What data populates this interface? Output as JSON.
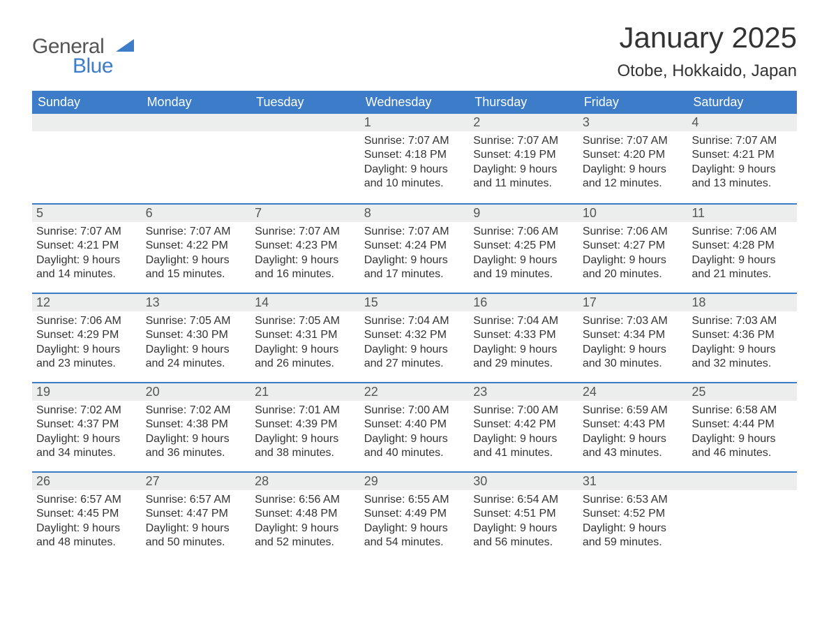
{
  "logo": {
    "word1": "General",
    "word2": "Blue",
    "accent_color": "#3d7cc9"
  },
  "title": "January 2025",
  "location": "Otobe, Hokkaido, Japan",
  "colors": {
    "header_bg": "#3d7cc9",
    "header_text": "#ffffff",
    "daynum_bg": "#eceded",
    "daynum_border": "#3d7cc9",
    "body_text": "#333333",
    "page_bg": "#ffffff"
  },
  "typography": {
    "title_fontsize": 42,
    "location_fontsize": 24,
    "header_fontsize": 18,
    "daynum_fontsize": 18,
    "body_fontsize": 16
  },
  "calendar": {
    "type": "month-grid",
    "columns": [
      "Sunday",
      "Monday",
      "Tuesday",
      "Wednesday",
      "Thursday",
      "Friday",
      "Saturday"
    ],
    "weeks": [
      [
        null,
        null,
        null,
        {
          "day": "1",
          "sunrise": "7:07 AM",
          "sunset": "4:18 PM",
          "dl1": "9 hours",
          "dl2": "and 10 minutes."
        },
        {
          "day": "2",
          "sunrise": "7:07 AM",
          "sunset": "4:19 PM",
          "dl1": "9 hours",
          "dl2": "and 11 minutes."
        },
        {
          "day": "3",
          "sunrise": "7:07 AM",
          "sunset": "4:20 PM",
          "dl1": "9 hours",
          "dl2": "and 12 minutes."
        },
        {
          "day": "4",
          "sunrise": "7:07 AM",
          "sunset": "4:21 PM",
          "dl1": "9 hours",
          "dl2": "and 13 minutes."
        }
      ],
      [
        {
          "day": "5",
          "sunrise": "7:07 AM",
          "sunset": "4:21 PM",
          "dl1": "9 hours",
          "dl2": "and 14 minutes."
        },
        {
          "day": "6",
          "sunrise": "7:07 AM",
          "sunset": "4:22 PM",
          "dl1": "9 hours",
          "dl2": "and 15 minutes."
        },
        {
          "day": "7",
          "sunrise": "7:07 AM",
          "sunset": "4:23 PM",
          "dl1": "9 hours",
          "dl2": "and 16 minutes."
        },
        {
          "day": "8",
          "sunrise": "7:07 AM",
          "sunset": "4:24 PM",
          "dl1": "9 hours",
          "dl2": "and 17 minutes."
        },
        {
          "day": "9",
          "sunrise": "7:06 AM",
          "sunset": "4:25 PM",
          "dl1": "9 hours",
          "dl2": "and 19 minutes."
        },
        {
          "day": "10",
          "sunrise": "7:06 AM",
          "sunset": "4:27 PM",
          "dl1": "9 hours",
          "dl2": "and 20 minutes."
        },
        {
          "day": "11",
          "sunrise": "7:06 AM",
          "sunset": "4:28 PM",
          "dl1": "9 hours",
          "dl2": "and 21 minutes."
        }
      ],
      [
        {
          "day": "12",
          "sunrise": "7:06 AM",
          "sunset": "4:29 PM",
          "dl1": "9 hours",
          "dl2": "and 23 minutes."
        },
        {
          "day": "13",
          "sunrise": "7:05 AM",
          "sunset": "4:30 PM",
          "dl1": "9 hours",
          "dl2": "and 24 minutes."
        },
        {
          "day": "14",
          "sunrise": "7:05 AM",
          "sunset": "4:31 PM",
          "dl1": "9 hours",
          "dl2": "and 26 minutes."
        },
        {
          "day": "15",
          "sunrise": "7:04 AM",
          "sunset": "4:32 PM",
          "dl1": "9 hours",
          "dl2": "and 27 minutes."
        },
        {
          "day": "16",
          "sunrise": "7:04 AM",
          "sunset": "4:33 PM",
          "dl1": "9 hours",
          "dl2": "and 29 minutes."
        },
        {
          "day": "17",
          "sunrise": "7:03 AM",
          "sunset": "4:34 PM",
          "dl1": "9 hours",
          "dl2": "and 30 minutes."
        },
        {
          "day": "18",
          "sunrise": "7:03 AM",
          "sunset": "4:36 PM",
          "dl1": "9 hours",
          "dl2": "and 32 minutes."
        }
      ],
      [
        {
          "day": "19",
          "sunrise": "7:02 AM",
          "sunset": "4:37 PM",
          "dl1": "9 hours",
          "dl2": "and 34 minutes."
        },
        {
          "day": "20",
          "sunrise": "7:02 AM",
          "sunset": "4:38 PM",
          "dl1": "9 hours",
          "dl2": "and 36 minutes."
        },
        {
          "day": "21",
          "sunrise": "7:01 AM",
          "sunset": "4:39 PM",
          "dl1": "9 hours",
          "dl2": "and 38 minutes."
        },
        {
          "day": "22",
          "sunrise": "7:00 AM",
          "sunset": "4:40 PM",
          "dl1": "9 hours",
          "dl2": "and 40 minutes."
        },
        {
          "day": "23",
          "sunrise": "7:00 AM",
          "sunset": "4:42 PM",
          "dl1": "9 hours",
          "dl2": "and 41 minutes."
        },
        {
          "day": "24",
          "sunrise": "6:59 AM",
          "sunset": "4:43 PM",
          "dl1": "9 hours",
          "dl2": "and 43 minutes."
        },
        {
          "day": "25",
          "sunrise": "6:58 AM",
          "sunset": "4:44 PM",
          "dl1": "9 hours",
          "dl2": "and 46 minutes."
        }
      ],
      [
        {
          "day": "26",
          "sunrise": "6:57 AM",
          "sunset": "4:45 PM",
          "dl1": "9 hours",
          "dl2": "and 48 minutes."
        },
        {
          "day": "27",
          "sunrise": "6:57 AM",
          "sunset": "4:47 PM",
          "dl1": "9 hours",
          "dl2": "and 50 minutes."
        },
        {
          "day": "28",
          "sunrise": "6:56 AM",
          "sunset": "4:48 PM",
          "dl1": "9 hours",
          "dl2": "and 52 minutes."
        },
        {
          "day": "29",
          "sunrise": "6:55 AM",
          "sunset": "4:49 PM",
          "dl1": "9 hours",
          "dl2": "and 54 minutes."
        },
        {
          "day": "30",
          "sunrise": "6:54 AM",
          "sunset": "4:51 PM",
          "dl1": "9 hours",
          "dl2": "and 56 minutes."
        },
        {
          "day": "31",
          "sunrise": "6:53 AM",
          "sunset": "4:52 PM",
          "dl1": "9 hours",
          "dl2": "and 59 minutes."
        },
        null
      ]
    ]
  },
  "labels": {
    "sunrise": "Sunrise: ",
    "sunset": "Sunset: ",
    "daylight": "Daylight: "
  }
}
